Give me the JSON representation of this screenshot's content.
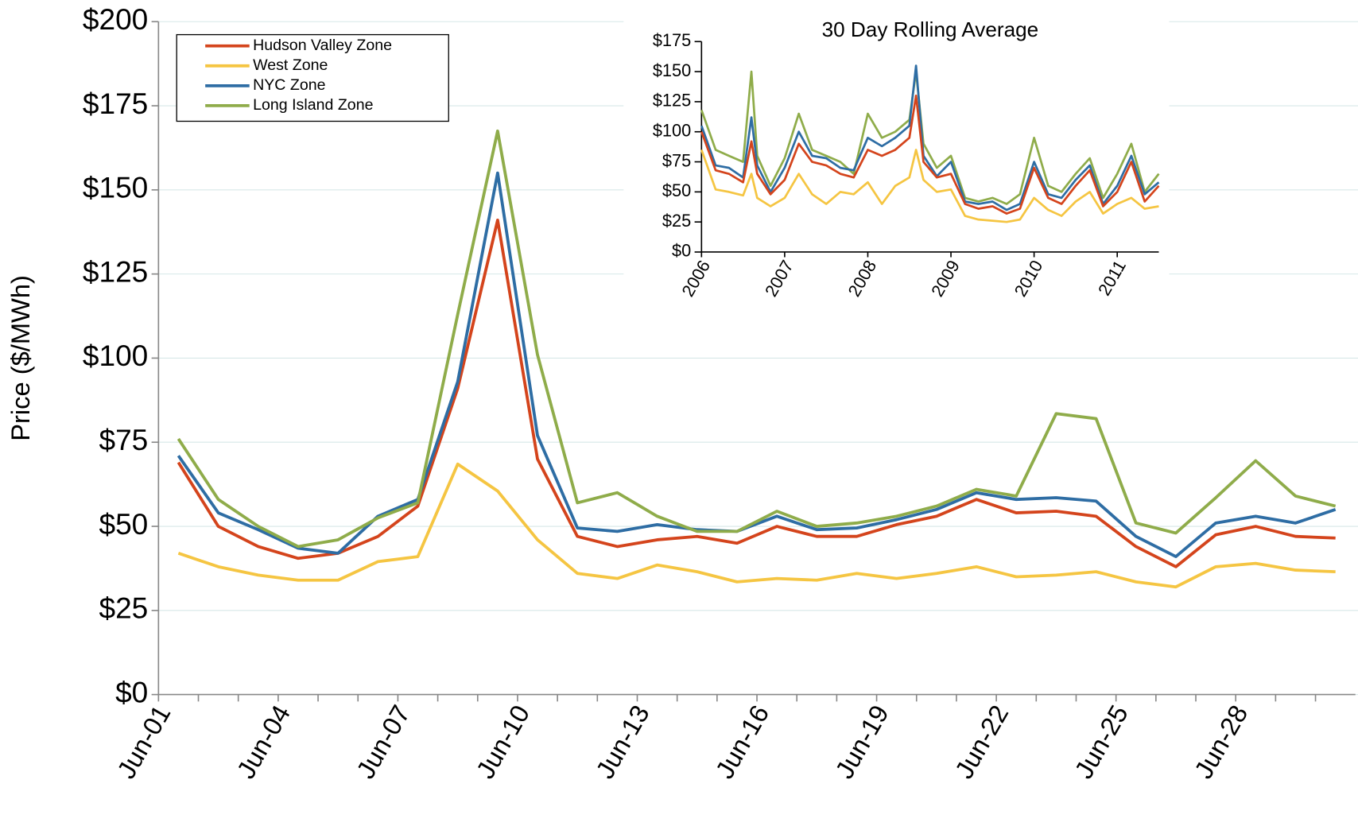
{
  "chart_data": [
    {
      "type": "line",
      "y_label": "Price ($/MWh)",
      "grid": true,
      "legend": "top-left",
      "categories": [
        "Jun-01",
        null,
        null,
        "Jun-04",
        null,
        null,
        "Jun-07",
        null,
        null,
        "Jun-10",
        null,
        null,
        "Jun-13",
        null,
        null,
        "Jun-16",
        null,
        null,
        "Jun-19",
        null,
        null,
        "Jun-22",
        null,
        null,
        "Jun-25",
        null,
        null,
        "Jun-28",
        null,
        null
      ],
      "ylim": [
        0,
        200
      ],
      "yticks": [
        {
          "value": 0,
          "label": "$0"
        },
        {
          "value": 25,
          "label": "$25"
        },
        {
          "value": 50,
          "label": "$50"
        },
        {
          "value": 75,
          "label": "$75"
        },
        {
          "value": 100,
          "label": "$100"
        },
        {
          "value": 125,
          "label": "$125"
        },
        {
          "value": 150,
          "label": "$150"
        },
        {
          "value": 175,
          "label": "$175"
        },
        {
          "value": 200,
          "label": "$200"
        }
      ],
      "series": [
        {
          "name": "Hudson Valley Zone",
          "color": "#d4441c",
          "values": [
            69,
            50,
            44,
            40.5,
            42,
            47,
            56,
            91,
            141,
            70,
            47,
            44,
            46,
            47,
            45,
            50,
            47,
            47,
            50.5,
            53,
            58,
            54,
            54.5,
            53,
            44,
            38,
            47.5,
            50,
            47,
            46.5
          ]
        },
        {
          "name": "West Zone",
          "color": "#f5c542",
          "values": [
            42,
            38,
            35.5,
            34,
            34,
            39.5,
            41,
            68.5,
            60.5,
            46,
            36,
            34.5,
            38.5,
            36.5,
            33.5,
            34.5,
            34,
            36,
            34.5,
            36,
            38,
            35,
            35.5,
            36.5,
            33.5,
            32,
            38,
            39,
            37,
            36.5
          ]
        },
        {
          "name": "NYC Zone",
          "color": "#2e6da4",
          "values": [
            71,
            54,
            49,
            43.5,
            42,
            53,
            58,
            93,
            155,
            77,
            49.5,
            48.5,
            50.5,
            49,
            48.5,
            53,
            49,
            49.5,
            52,
            55,
            60,
            58,
            58.5,
            57.5,
            47,
            41,
            51,
            53,
            51,
            55
          ]
        },
        {
          "name": "Long Island Zone",
          "color": "#8fac4a",
          "values": [
            76,
            58,
            50,
            44,
            46,
            52.5,
            57,
            113,
            167.5,
            101,
            57,
            60,
            53,
            48.5,
            48.5,
            54.5,
            50,
            51,
            53,
            56,
            61,
            59,
            83.5,
            82,
            51,
            48,
            58.5,
            69.5,
            59,
            56
          ]
        }
      ]
    },
    {
      "type": "line",
      "title": "30 Day Rolling Average",
      "grid": false,
      "x": [
        2006,
        2006.17,
        2006.33,
        2006.5,
        2006.6,
        2006.67,
        2006.83,
        2007,
        2007.17,
        2007.33,
        2007.5,
        2007.67,
        2007.83,
        2008,
        2008.17,
        2008.33,
        2008.5,
        2008.58,
        2008.67,
        2008.83,
        2009,
        2009.17,
        2009.33,
        2009.5,
        2009.67,
        2009.83,
        2010,
        2010.17,
        2010.33,
        2010.5,
        2010.67,
        2010.83,
        2011,
        2011.17,
        2011.33,
        2011.5
      ],
      "xlim": [
        2006,
        2011.5
      ],
      "xticks": [
        2006,
        2007,
        2008,
        2009,
        2010,
        2011
      ],
      "ylim": [
        0,
        175
      ],
      "yticks": [
        {
          "value": 0,
          "label": "$0"
        },
        {
          "value": 25,
          "label": "$25"
        },
        {
          "value": 50,
          "label": "$50"
        },
        {
          "value": 75,
          "label": "$75"
        },
        {
          "value": 100,
          "label": "$100"
        },
        {
          "value": 125,
          "label": "$125"
        },
        {
          "value": 150,
          "label": "$150"
        },
        {
          "value": 175,
          "label": "$175"
        }
      ],
      "series": [
        {
          "color": "#f5c542",
          "values": [
            85,
            52,
            50,
            47,
            65,
            45,
            38,
            45,
            65,
            48,
            40,
            50,
            48,
            58,
            40,
            55,
            62,
            85,
            60,
            50,
            52,
            30,
            27,
            26,
            25,
            27,
            45,
            35,
            30,
            42,
            50,
            32,
            40,
            45,
            36,
            38
          ]
        },
        {
          "color": "#8fac4a",
          "values": [
            118,
            85,
            80,
            75,
            150,
            80,
            55,
            78,
            115,
            85,
            80,
            75,
            65,
            115,
            95,
            100,
            110,
            150,
            90,
            70,
            80,
            45,
            42,
            45,
            40,
            48,
            95,
            55,
            50,
            65,
            78,
            45,
            65,
            90,
            50,
            65
          ]
        },
        {
          "color": "#2e6da4",
          "values": [
            105,
            72,
            70,
            62,
            112,
            72,
            50,
            70,
            100,
            80,
            78,
            70,
            68,
            95,
            88,
            95,
            105,
            155,
            80,
            63,
            75,
            42,
            40,
            42,
            35,
            40,
            75,
            48,
            45,
            60,
            72,
            40,
            55,
            80,
            48,
            58
          ]
        },
        {
          "color": "#d4441c",
          "values": [
            100,
            68,
            65,
            58,
            92,
            65,
            48,
            60,
            90,
            75,
            72,
            65,
            62,
            85,
            80,
            85,
            95,
            130,
            75,
            62,
            65,
            40,
            36,
            38,
            32,
            36,
            70,
            45,
            40,
            55,
            68,
            38,
            50,
            75,
            42,
            55
          ]
        }
      ]
    }
  ]
}
